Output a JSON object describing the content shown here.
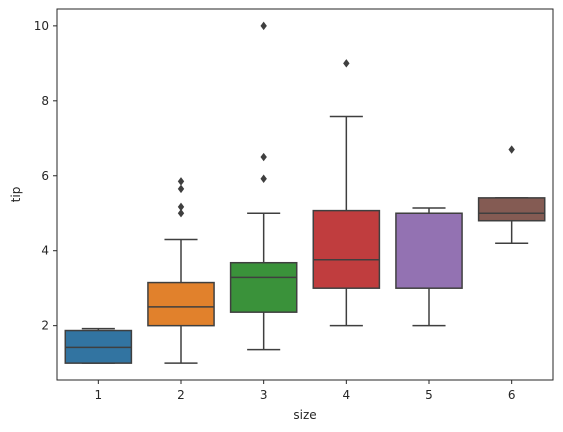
{
  "chart_data": {
    "type": "box",
    "title": "",
    "xlabel": "size",
    "ylabel": "tip",
    "ylim": [
      0.55,
      10.45
    ],
    "yticks": [
      2,
      4,
      6,
      8,
      10
    ],
    "grid": false,
    "categories": [
      "1",
      "2",
      "3",
      "4",
      "5",
      "6"
    ],
    "boxes": [
      {
        "category": "1",
        "color": "#3274a1",
        "whisker_low": 1.0,
        "q1": 1.0,
        "median": 1.42,
        "q3": 1.87,
        "whisker_high": 1.92,
        "outliers": []
      },
      {
        "category": "2",
        "color": "#e1812c",
        "whisker_low": 1.0,
        "q1": 2.0,
        "median": 2.5,
        "q3": 3.15,
        "whisker_high": 4.3,
        "outliers": [
          5.0,
          5.17,
          5.65,
          5.85
        ]
      },
      {
        "category": "3",
        "color": "#3a923a",
        "whisker_low": 1.36,
        "q1": 2.36,
        "median": 3.29,
        "q3": 3.68,
        "whisker_high": 5.0,
        "outliers": [
          5.92,
          6.5,
          10.0
        ]
      },
      {
        "category": "4",
        "color": "#c03d3e",
        "whisker_low": 2.0,
        "q1": 3.0,
        "median": 3.76,
        "q3": 5.07,
        "whisker_high": 7.58,
        "outliers": [
          9.0
        ]
      },
      {
        "category": "5",
        "color": "#9372b2",
        "whisker_low": 2.0,
        "q1": 3.0,
        "median": 5.0,
        "q3": 5.0,
        "whisker_high": 5.14,
        "outliers": []
      },
      {
        "category": "6",
        "color": "#845b53",
        "whisker_low": 4.2,
        "q1": 4.8,
        "median": 5.0,
        "q3": 5.41,
        "whisker_high": 5.41,
        "outliers": [
          6.7
        ]
      }
    ]
  }
}
